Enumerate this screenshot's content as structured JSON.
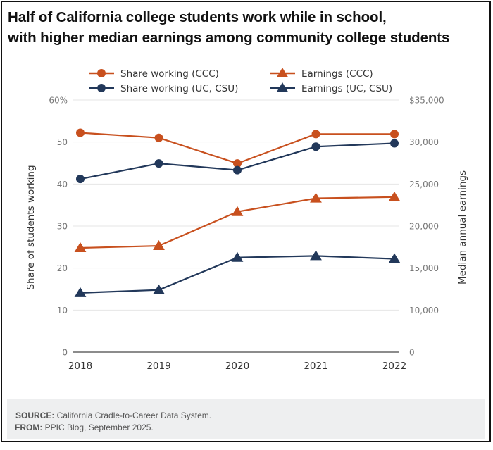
{
  "title": {
    "line1": "Half of California college students work while in school,",
    "line2": "with higher median earnings among community college students"
  },
  "colors": {
    "ccc": "#c8501e",
    "ucsu": "#22385a",
    "grid": "#e6e6e6",
    "axis": "#666666"
  },
  "footer": {
    "source_label": "SOURCE:",
    "source_text": " California Cradle-to-Career Data System.",
    "from_label": "FROM:",
    "from_text": " PPIC Blog, September 2025."
  },
  "chart_data": {
    "type": "line",
    "title": "Half of California college students work while in school, with higher median earnings among community college students",
    "x": [
      "2018",
      "2019",
      "2020",
      "2021",
      "2022"
    ],
    "legend_position": "top-center",
    "grid": true,
    "left_axis": {
      "label": "Share of students working",
      "range": [
        0,
        60
      ],
      "ticks": [
        0,
        10,
        20,
        30,
        40,
        50,
        60
      ],
      "tick_labels": [
        "0",
        "10",
        "20",
        "30",
        "40",
        "50",
        "60%"
      ]
    },
    "right_axis": {
      "label": "Median annual earnings",
      "tick_values": [
        0,
        10000,
        15000,
        20000,
        25000,
        30000,
        35000
      ],
      "tick_labels": [
        "0",
        "10,000",
        "15,000",
        "20,000",
        "25,000",
        "30,000",
        "$35,000"
      ],
      "aligned_to_left_ticks": [
        0,
        10,
        20,
        30,
        40,
        50,
        60
      ]
    },
    "series": [
      {
        "name": "Share working (CCC)",
        "axis": "left",
        "marker": "circle",
        "color_key": "ccc",
        "values": [
          52.2,
          51.0,
          44.9,
          51.9,
          51.9
        ]
      },
      {
        "name": "Share working (UC, CSU)",
        "axis": "left",
        "marker": "circle",
        "color_key": "ucsu",
        "values": [
          41.2,
          44.9,
          43.3,
          48.9,
          49.7
        ]
      },
      {
        "name": "Earnings (CCC)",
        "axis": "right",
        "marker": "triangle",
        "color_key": "ccc",
        "values": [
          17400,
          17650,
          21700,
          23300,
          23450
        ]
      },
      {
        "name": "Earnings (UC, CSU)",
        "axis": "right",
        "marker": "triangle",
        "color_key": "ucsu",
        "values": [
          12050,
          12400,
          16250,
          16450,
          16100
        ]
      }
    ]
  }
}
